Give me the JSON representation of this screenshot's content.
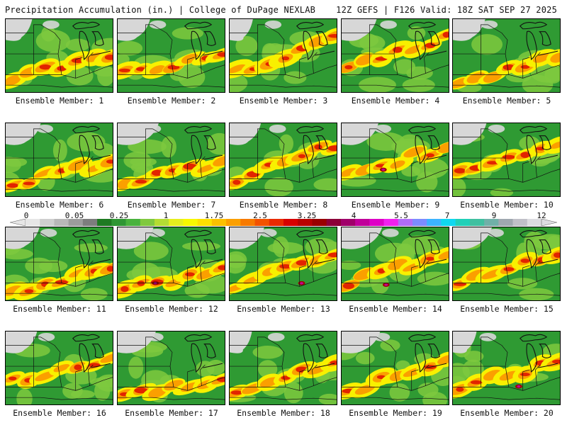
{
  "header": {
    "title": "Precipitation Accumulation (in.) | College of DuPage NEXLAB",
    "run_info": "12Z GEFS | F126 Valid: 18Z SAT SEP 27 2025"
  },
  "colorbar": {
    "tick_labels": [
      "0",
      "0.05",
      "0.25",
      "1",
      "1.75",
      "2.5",
      "3.25",
      "4",
      "5.5",
      "7",
      "9",
      "12"
    ],
    "colors": [
      "#e6e6e6",
      "#cfcfcf",
      "#b8b8b8",
      "#9c9c9c",
      "#7d7d7d",
      "#1e7a22",
      "#2e9633",
      "#49b23d",
      "#80c93f",
      "#b4dc33",
      "#e6ee1e",
      "#f8f800",
      "#fde000",
      "#fcc000",
      "#fb9f00",
      "#f77a00",
      "#f25200",
      "#e92a00",
      "#d80000",
      "#b80000",
      "#990000",
      "#8c0038",
      "#a0006a",
      "#c0009a",
      "#de00c6",
      "#f020ee",
      "#b06cf8",
      "#7c8cff",
      "#3cb4ff",
      "#10d8f0",
      "#20d0b8",
      "#40c0a0",
      "#70b0a8",
      "#a0a8b0",
      "#c0c0c8",
      "#dcdce0"
    ],
    "color_names": {
      "background_green": "#2f9a33",
      "light_green": "#7ec93e",
      "yellow": "#f8f000",
      "orange": "#fb9f00",
      "red": "#e22400",
      "dark_red": "#a00000",
      "magenta": "#c0009a",
      "no_precip_gray": "#d7d7d7"
    }
  },
  "members": [
    {
      "label": "Ensemble Member: 1"
    },
    {
      "label": "Ensemble Member: 2"
    },
    {
      "label": "Ensemble Member: 3"
    },
    {
      "label": "Ensemble Member: 4"
    },
    {
      "label": "Ensemble Member: 5"
    },
    {
      "label": "Ensemble Member: 6"
    },
    {
      "label": "Ensemble Member: 7"
    },
    {
      "label": "Ensemble Member: 8"
    },
    {
      "label": "Ensemble Member: 9"
    },
    {
      "label": "Ensemble Member: 10"
    },
    {
      "label": "Ensemble Member: 11"
    },
    {
      "label": "Ensemble Member: 12"
    },
    {
      "label": "Ensemble Member: 13"
    },
    {
      "label": "Ensemble Member: 14"
    },
    {
      "label": "Ensemble Member: 15"
    },
    {
      "label": "Ensemble Member: 16"
    },
    {
      "label": "Ensemble Member: 17"
    },
    {
      "label": "Ensemble Member: 18"
    },
    {
      "label": "Ensemble Member: 19"
    },
    {
      "label": "Ensemble Member: 20"
    }
  ]
}
